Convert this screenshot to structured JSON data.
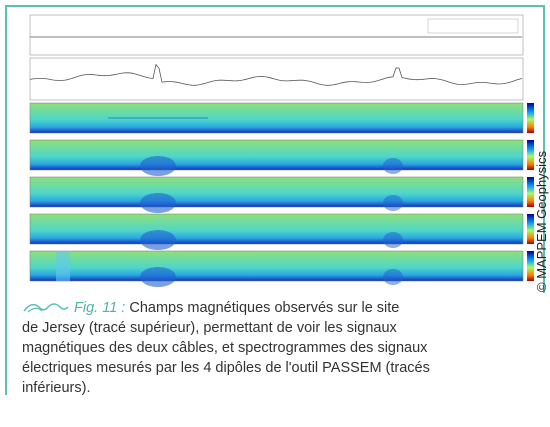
{
  "figure": {
    "credit": "© MAPPEM Geophysics"
  },
  "caption": {
    "label": "Fig. 11 :",
    "lines": [
      "Champs magnétiques observés sur le site",
      "de Jersey (tracé supérieur), permettant de voir les signaux",
      "magnétiques des deux câbles, et spectrogrammes des signaux",
      "électriques mesurés par les 4 dipôles de l'outil PASSEM (tracés",
      "inférieurs)."
    ]
  }
}
